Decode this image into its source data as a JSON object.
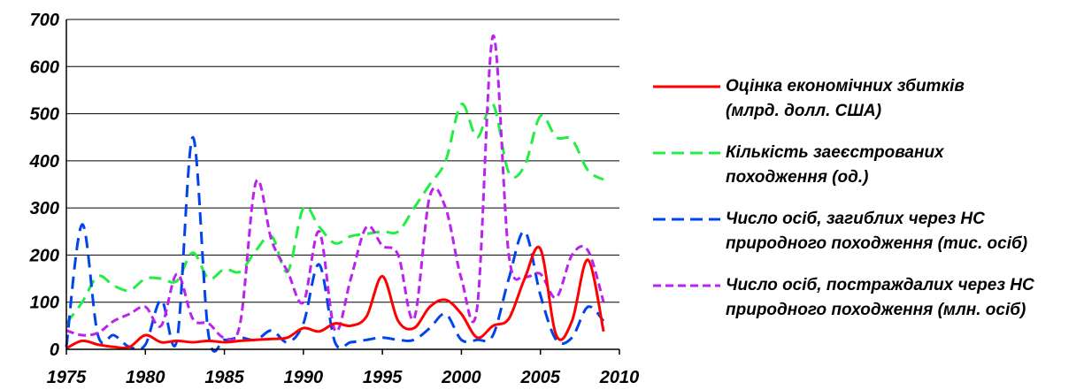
{
  "chart_data": {
    "type": "line",
    "title": "",
    "xlabel": "",
    "ylabel": "",
    "xlim": [
      1975,
      2010
    ],
    "ylim": [
      0,
      700
    ],
    "grid": true,
    "legend_position": "right",
    "x_ticks": [
      "1975",
      "1980",
      "1985",
      "1990",
      "1995",
      "2000",
      "2005",
      "2010"
    ],
    "y_ticks": [
      "0",
      "100",
      "200",
      "300",
      "400",
      "500",
      "600",
      "700"
    ],
    "x": [
      1975,
      1976,
      1977,
      1978,
      1979,
      1980,
      1981,
      1982,
      1983,
      1984,
      1985,
      1986,
      1987,
      1988,
      1989,
      1990,
      1991,
      1992,
      1993,
      1994,
      1995,
      1996,
      1997,
      1998,
      1999,
      2000,
      2001,
      2002,
      2003,
      2004,
      2005,
      2006,
      2007,
      2008,
      2009
    ],
    "series": [
      {
        "name": "Оцінка економічних збитків (млрд. долл. США)",
        "color": "#ff0000",
        "dash": "solid",
        "values": [
          2,
          18,
          10,
          5,
          5,
          30,
          15,
          18,
          15,
          18,
          15,
          18,
          20,
          22,
          25,
          45,
          38,
          55,
          50,
          70,
          155,
          60,
          45,
          90,
          105,
          75,
          25,
          50,
          65,
          150,
          213,
          30,
          60,
          190,
          38
        ]
      },
      {
        "name": "Кількість заеєстрованих походження (од.)",
        "color": "#22ee44",
        "dash": "dashed",
        "values": [
          55,
          100,
          155,
          135,
          125,
          150,
          150,
          145,
          205,
          150,
          170,
          165,
          210,
          240,
          165,
          300,
          260,
          225,
          240,
          245,
          250,
          250,
          300,
          350,
          400,
          520,
          450,
          520,
          375,
          390,
          495,
          450,
          445,
          380,
          360
        ]
      },
      {
        "name": "Число осіб, загиблих через НС природного походження (тис. осіб)",
        "color": "#0044ee",
        "dash": "dashed",
        "values": [
          5,
          265,
          30,
          30,
          5,
          10,
          105,
          20,
          450,
          30,
          20,
          25,
          20,
          40,
          15,
          55,
          180,
          15,
          15,
          20,
          25,
          20,
          20,
          45,
          75,
          20,
          20,
          30,
          150,
          250,
          115,
          20,
          25,
          90,
          60
        ]
      },
      {
        "name": "Число осіб, постраждалих через НС природного походження (млн. осіб)",
        "color": "#bb22ee",
        "dash": "dashed",
        "values": [
          40,
          30,
          35,
          60,
          75,
          90,
          50,
          160,
          65,
          55,
          25,
          55,
          355,
          230,
          165,
          100,
          250,
          40,
          150,
          260,
          220,
          200,
          65,
          325,
          300,
          150,
          90,
          665,
          200,
          155,
          160,
          110,
          200,
          210,
          100
        ]
      }
    ]
  },
  "legend": {
    "items": [
      "Оцінка економічних збитків (млрд. долл. США)",
      "Кількість заеєстрованих походження (од.)",
      "Число осіб, загиблих через НС природного походження (тис. осіб)",
      "Число осіб, постраждалих через НС природного походження (млн. осіб)"
    ],
    "lines": [
      [
        "Оцінка економічних збитків",
        "(млрд. долл. США)"
      ],
      [
        "Кількість заеєстрованих",
        "походження (од.)"
      ],
      [
        "Число осіб, загиблих через НС",
        "природного походження (тис. осіб)"
      ],
      [
        "Число осіб, постраждалих через НС",
        "природного походження (млн. осіб)"
      ]
    ]
  }
}
